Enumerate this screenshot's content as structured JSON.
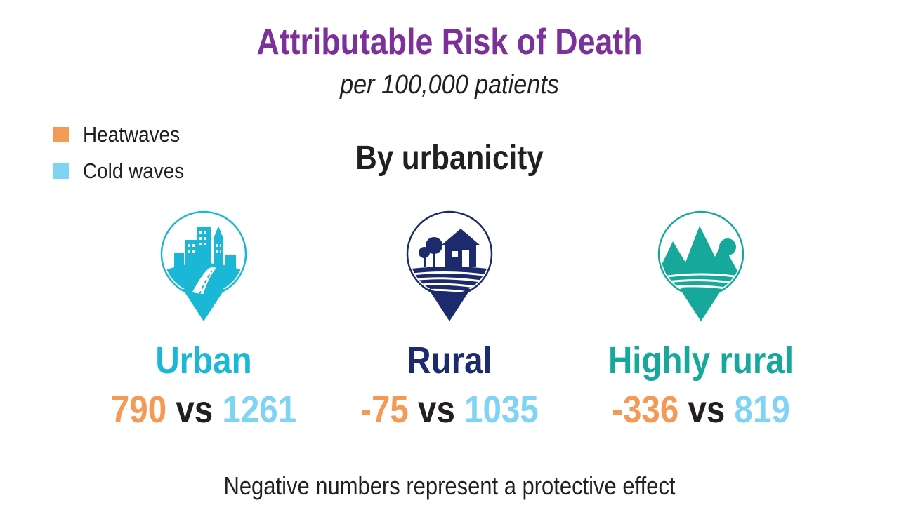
{
  "title": "Attributable Risk of Death",
  "subtitle": "per 100,000 patients",
  "section_title": "By urbanicity",
  "legend": [
    {
      "label": "Heatwaves",
      "color": "#f59a55"
    },
    {
      "label": "Cold waves",
      "color": "#7fd3f5"
    }
  ],
  "groups": [
    {
      "name": "Urban",
      "icon": "city-pin-icon",
      "color": "#1ab7d6",
      "heat": "790",
      "vs": "vs",
      "cold": "1261"
    },
    {
      "name": "Rural",
      "icon": "farmhouse-pin-icon",
      "color": "#1c2a6e",
      "heat": "-75",
      "vs": "vs",
      "cold": "1035"
    },
    {
      "name": "Highly rural",
      "icon": "mountain-pin-icon",
      "color": "#16a89a",
      "heat": "-336",
      "vs": "vs",
      "cold": "819"
    }
  ],
  "value_colors": {
    "heat": "#f59a55",
    "cold": "#7fd3f5"
  },
  "footnote": "Negative numbers represent a protective effect"
}
